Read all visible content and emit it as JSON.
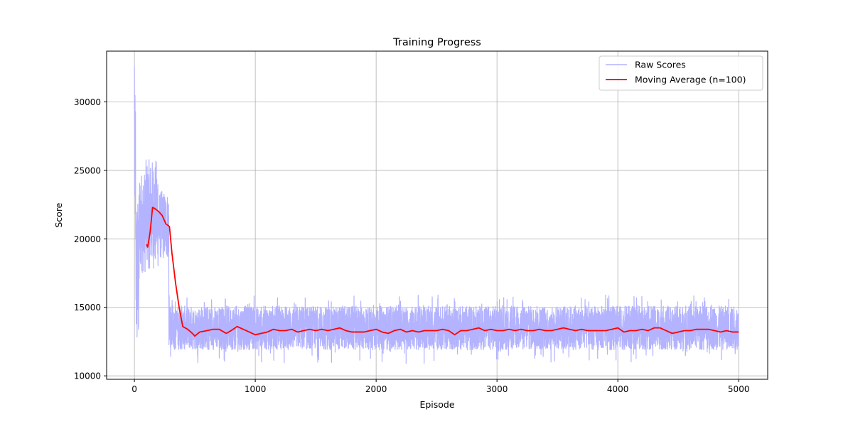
{
  "chart_data": {
    "type": "line",
    "title": "Training Progress",
    "xlabel": "Episode",
    "ylabel": "Score",
    "xlim": [
      -230,
      5240
    ],
    "ylim": [
      9750,
      33700
    ],
    "xticks": [
      0,
      1000,
      2000,
      3000,
      4000,
      5000
    ],
    "yticks": [
      10000,
      15000,
      20000,
      25000,
      30000
    ],
    "grid": true,
    "legend_position": "top-right",
    "series": [
      {
        "name": "Raw Scores",
        "color": "#b3b3ff",
        "values": []
      },
      {
        "name": "Moving Average (n=100)",
        "color": "#ff0000",
        "x": [
          100,
          110,
          130,
          150,
          170,
          200,
          230,
          260,
          290,
          310,
          340,
          370,
          400,
          440,
          480,
          500,
          540,
          600,
          650,
          700,
          760,
          800,
          850,
          900,
          950,
          1000,
          1050,
          1100,
          1150,
          1200,
          1250,
          1300,
          1350,
          1400,
          1450,
          1500,
          1550,
          1600,
          1650,
          1700,
          1750,
          1800,
          1850,
          1900,
          1950,
          2000,
          2050,
          2100,
          2150,
          2200,
          2250,
          2300,
          2350,
          2400,
          2450,
          2500,
          2550,
          2600,
          2650,
          2700,
          2750,
          2800,
          2850,
          2900,
          2950,
          3000,
          3050,
          3100,
          3150,
          3200,
          3250,
          3300,
          3350,
          3400,
          3450,
          3500,
          3550,
          3600,
          3650,
          3700,
          3750,
          3800,
          3850,
          3900,
          3950,
          4000,
          4050,
          4100,
          4150,
          4200,
          4250,
          4300,
          4350,
          4400,
          4450,
          4500,
          4550,
          4600,
          4650,
          4700,
          4750,
          4800,
          4850,
          4900,
          4950,
          5000
        ],
        "values": [
          19600,
          19400,
          20500,
          22300,
          22200,
          22000,
          21700,
          21100,
          20900,
          19000,
          16800,
          15000,
          13600,
          13400,
          13100,
          12900,
          13200,
          13300,
          13400,
          13400,
          13100,
          13300,
          13600,
          13400,
          13200,
          13000,
          13100,
          13200,
          13400,
          13300,
          13300,
          13400,
          13200,
          13300,
          13400,
          13300,
          13400,
          13300,
          13400,
          13500,
          13300,
          13200,
          13200,
          13200,
          13300,
          13400,
          13200,
          13100,
          13300,
          13400,
          13200,
          13300,
          13200,
          13300,
          13300,
          13300,
          13400,
          13300,
          13000,
          13300,
          13300,
          13400,
          13500,
          13300,
          13400,
          13300,
          13300,
          13400,
          13300,
          13400,
          13300,
          13300,
          13400,
          13300,
          13300,
          13400,
          13500,
          13400,
          13300,
          13400,
          13300,
          13300,
          13300,
          13300,
          13400,
          13500,
          13200,
          13300,
          13300,
          13400,
          13300,
          13500,
          13500,
          13300,
          13100,
          13200,
          13300,
          13300,
          13400,
          13400,
          13400,
          13300,
          13200,
          13300,
          13200,
          13200
        ]
      }
    ]
  }
}
